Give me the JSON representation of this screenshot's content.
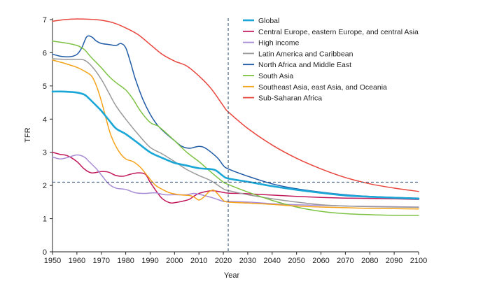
{
  "chart_data": {
    "type": "line",
    "xlabel": "Year",
    "ylabel": "TFR",
    "xlim": [
      1950,
      2100
    ],
    "ylim": [
      0,
      7
    ],
    "x_ticks": [
      "1950",
      "1960",
      "1970",
      "1980",
      "1990",
      "2000",
      "2010",
      "2020",
      "2030",
      "2040",
      "2050",
      "2060",
      "2070",
      "2080",
      "2090",
      "2100"
    ],
    "y_ticks": [
      "0",
      "1",
      "2",
      "3",
      "4",
      "5",
      "6",
      "7"
    ],
    "grid": false,
    "legend_position": "top-right",
    "reference_lines": {
      "year": 2022,
      "tfr": 2.1
    },
    "series": [
      {
        "name": "Global",
        "color": "#1aa6d6",
        "width": 2.6,
        "points": [
          [
            1950,
            4.83
          ],
          [
            1955,
            4.83
          ],
          [
            1960,
            4.8
          ],
          [
            1963,
            4.74
          ],
          [
            1965,
            4.62
          ],
          [
            1968,
            4.4
          ],
          [
            1970,
            4.25
          ],
          [
            1973,
            3.98
          ],
          [
            1976,
            3.72
          ],
          [
            1980,
            3.55
          ],
          [
            1985,
            3.28
          ],
          [
            1990,
            3.0
          ],
          [
            1995,
            2.83
          ],
          [
            2000,
            2.68
          ],
          [
            2005,
            2.6
          ],
          [
            2010,
            2.52
          ],
          [
            2015,
            2.49
          ],
          [
            2017,
            2.45
          ],
          [
            2020,
            2.28
          ],
          [
            2022,
            2.21
          ],
          [
            2030,
            2.11
          ],
          [
            2040,
            1.98
          ],
          [
            2050,
            1.87
          ],
          [
            2060,
            1.78
          ],
          [
            2070,
            1.7
          ],
          [
            2080,
            1.66
          ],
          [
            2090,
            1.63
          ],
          [
            2100,
            1.6
          ]
        ]
      },
      {
        "name": "Central Europe, eastern Europe, and central Asia",
        "color": "#c2185b",
        "width": 1.5,
        "points": [
          [
            1950,
            3.0
          ],
          [
            1953,
            2.94
          ],
          [
            1956,
            2.9
          ],
          [
            1960,
            2.72
          ],
          [
            1963,
            2.5
          ],
          [
            1966,
            2.38
          ],
          [
            1970,
            2.42
          ],
          [
            1973,
            2.4
          ],
          [
            1976,
            2.3
          ],
          [
            1979,
            2.28
          ],
          [
            1982,
            2.34
          ],
          [
            1985,
            2.38
          ],
          [
            1988,
            2.34
          ],
          [
            1990,
            2.1
          ],
          [
            1993,
            1.78
          ],
          [
            1995,
            1.6
          ],
          [
            1998,
            1.48
          ],
          [
            2000,
            1.48
          ],
          [
            2003,
            1.52
          ],
          [
            2006,
            1.58
          ],
          [
            2008,
            1.68
          ],
          [
            2010,
            1.76
          ],
          [
            2013,
            1.82
          ],
          [
            2016,
            1.84
          ],
          [
            2020,
            1.79
          ],
          [
            2022,
            1.77
          ],
          [
            2030,
            1.75
          ],
          [
            2040,
            1.71
          ],
          [
            2050,
            1.67
          ],
          [
            2060,
            1.64
          ],
          [
            2070,
            1.62
          ],
          [
            2080,
            1.61
          ],
          [
            2090,
            1.6
          ],
          [
            2100,
            1.58
          ]
        ]
      },
      {
        "name": "High income",
        "color": "#a78bd6",
        "width": 1.5,
        "points": [
          [
            1950,
            2.86
          ],
          [
            1953,
            2.8
          ],
          [
            1956,
            2.84
          ],
          [
            1960,
            2.92
          ],
          [
            1963,
            2.86
          ],
          [
            1965,
            2.72
          ],
          [
            1968,
            2.5
          ],
          [
            1970,
            2.32
          ],
          [
            1973,
            2.05
          ],
          [
            1976,
            1.92
          ],
          [
            1980,
            1.88
          ],
          [
            1984,
            1.78
          ],
          [
            1988,
            1.76
          ],
          [
            1992,
            1.78
          ],
          [
            1996,
            1.72
          ],
          [
            2000,
            1.72
          ],
          [
            2005,
            1.72
          ],
          [
            2008,
            1.76
          ],
          [
            2012,
            1.7
          ],
          [
            2016,
            1.62
          ],
          [
            2020,
            1.52
          ],
          [
            2022,
            1.52
          ],
          [
            2030,
            1.5
          ],
          [
            2040,
            1.45
          ],
          [
            2050,
            1.42
          ],
          [
            2060,
            1.4
          ],
          [
            2070,
            1.38
          ],
          [
            2080,
            1.37
          ],
          [
            2090,
            1.36
          ],
          [
            2100,
            1.35
          ]
        ]
      },
      {
        "name": "Latin America and Caribbean",
        "color": "#999999",
        "width": 1.5,
        "points": [
          [
            1950,
            5.82
          ],
          [
            1955,
            5.8
          ],
          [
            1960,
            5.8
          ],
          [
            1963,
            5.78
          ],
          [
            1966,
            5.6
          ],
          [
            1970,
            5.2
          ],
          [
            1973,
            4.8
          ],
          [
            1976,
            4.4
          ],
          [
            1980,
            4.0
          ],
          [
            1985,
            3.55
          ],
          [
            1990,
            3.15
          ],
          [
            1995,
            2.95
          ],
          [
            2000,
            2.72
          ],
          [
            2005,
            2.48
          ],
          [
            2010,
            2.3
          ],
          [
            2015,
            2.14
          ],
          [
            2020,
            1.9
          ],
          [
            2022,
            1.85
          ],
          [
            2030,
            1.72
          ],
          [
            2040,
            1.6
          ],
          [
            2050,
            1.5
          ],
          [
            2060,
            1.42
          ],
          [
            2070,
            1.38
          ],
          [
            2080,
            1.36
          ],
          [
            2090,
            1.35
          ],
          [
            2100,
            1.34
          ]
        ]
      },
      {
        "name": "North Africa and Middle East",
        "color": "#1f5aa6",
        "width": 1.5,
        "points": [
          [
            1950,
            5.96
          ],
          [
            1953,
            5.9
          ],
          [
            1957,
            5.88
          ],
          [
            1960,
            5.95
          ],
          [
            1962,
            6.15
          ],
          [
            1964,
            6.48
          ],
          [
            1966,
            6.48
          ],
          [
            1968,
            6.35
          ],
          [
            1970,
            6.28
          ],
          [
            1973,
            6.25
          ],
          [
            1976,
            6.22
          ],
          [
            1978,
            6.28
          ],
          [
            1980,
            6.15
          ],
          [
            1982,
            5.7
          ],
          [
            1984,
            5.2
          ],
          [
            1987,
            4.6
          ],
          [
            1990,
            4.15
          ],
          [
            1993,
            3.82
          ],
          [
            1996,
            3.6
          ],
          [
            2000,
            3.35
          ],
          [
            2003,
            3.18
          ],
          [
            2006,
            3.12
          ],
          [
            2008,
            3.15
          ],
          [
            2010,
            3.18
          ],
          [
            2012,
            3.15
          ],
          [
            2015,
            3.0
          ],
          [
            2018,
            2.8
          ],
          [
            2020,
            2.6
          ],
          [
            2022,
            2.5
          ],
          [
            2030,
            2.28
          ],
          [
            2040,
            2.05
          ],
          [
            2050,
            1.9
          ],
          [
            2060,
            1.8
          ],
          [
            2070,
            1.72
          ],
          [
            2080,
            1.67
          ],
          [
            2090,
            1.64
          ],
          [
            2100,
            1.62
          ]
        ]
      },
      {
        "name": "South Asia",
        "color": "#7dc243",
        "width": 1.5,
        "points": [
          [
            1950,
            6.35
          ],
          [
            1955,
            6.3
          ],
          [
            1960,
            6.22
          ],
          [
            1963,
            6.1
          ],
          [
            1966,
            5.85
          ],
          [
            1970,
            5.55
          ],
          [
            1973,
            5.3
          ],
          [
            1976,
            5.1
          ],
          [
            1980,
            4.88
          ],
          [
            1983,
            4.6
          ],
          [
            1986,
            4.25
          ],
          [
            1990,
            3.9
          ],
          [
            1993,
            3.8
          ],
          [
            1996,
            3.62
          ],
          [
            2000,
            3.35
          ],
          [
            2005,
            3.0
          ],
          [
            2010,
            2.72
          ],
          [
            2015,
            2.4
          ],
          [
            2020,
            2.1
          ],
          [
            2022,
            2.03
          ],
          [
            2030,
            1.8
          ],
          [
            2040,
            1.55
          ],
          [
            2050,
            1.35
          ],
          [
            2060,
            1.22
          ],
          [
            2070,
            1.15
          ],
          [
            2080,
            1.12
          ],
          [
            2090,
            1.1
          ],
          [
            2100,
            1.1
          ]
        ]
      },
      {
        "name": "Southeast Asia, east Asia, and Oceania",
        "color": "#f5a31a",
        "width": 1.5,
        "points": [
          [
            1950,
            5.78
          ],
          [
            1955,
            5.68
          ],
          [
            1960,
            5.56
          ],
          [
            1963,
            5.45
          ],
          [
            1966,
            5.3
          ],
          [
            1968,
            5.0
          ],
          [
            1970,
            4.55
          ],
          [
            1972,
            4.0
          ],
          [
            1974,
            3.5
          ],
          [
            1977,
            3.05
          ],
          [
            1980,
            2.8
          ],
          [
            1983,
            2.72
          ],
          [
            1986,
            2.55
          ],
          [
            1989,
            2.28
          ],
          [
            1992,
            2.02
          ],
          [
            1995,
            1.88
          ],
          [
            1998,
            1.78
          ],
          [
            2002,
            1.72
          ],
          [
            2006,
            1.7
          ],
          [
            2008,
            1.65
          ],
          [
            2010,
            1.56
          ],
          [
            2012,
            1.65
          ],
          [
            2014,
            1.8
          ],
          [
            2016,
            1.86
          ],
          [
            2018,
            1.72
          ],
          [
            2020,
            1.55
          ],
          [
            2022,
            1.5
          ],
          [
            2030,
            1.47
          ],
          [
            2040,
            1.43
          ],
          [
            2050,
            1.38
          ],
          [
            2060,
            1.35
          ],
          [
            2070,
            1.33
          ],
          [
            2080,
            1.31
          ],
          [
            2090,
            1.3
          ],
          [
            2100,
            1.29
          ]
        ]
      },
      {
        "name": "Sub-Saharan Africa",
        "color": "#e8453c",
        "width": 1.5,
        "points": [
          [
            1950,
            6.95
          ],
          [
            1955,
            7.0
          ],
          [
            1960,
            7.02
          ],
          [
            1965,
            7.01
          ],
          [
            1970,
            6.98
          ],
          [
            1975,
            6.9
          ],
          [
            1980,
            6.75
          ],
          [
            1985,
            6.55
          ],
          [
            1990,
            6.25
          ],
          [
            1995,
            5.95
          ],
          [
            2000,
            5.75
          ],
          [
            2005,
            5.6
          ],
          [
            2010,
            5.3
          ],
          [
            2015,
            4.92
          ],
          [
            2020,
            4.4
          ],
          [
            2022,
            4.22
          ],
          [
            2030,
            3.72
          ],
          [
            2040,
            3.22
          ],
          [
            2050,
            2.82
          ],
          [
            2060,
            2.5
          ],
          [
            2070,
            2.24
          ],
          [
            2080,
            2.05
          ],
          [
            2090,
            1.92
          ],
          [
            2100,
            1.82
          ]
        ]
      }
    ]
  }
}
